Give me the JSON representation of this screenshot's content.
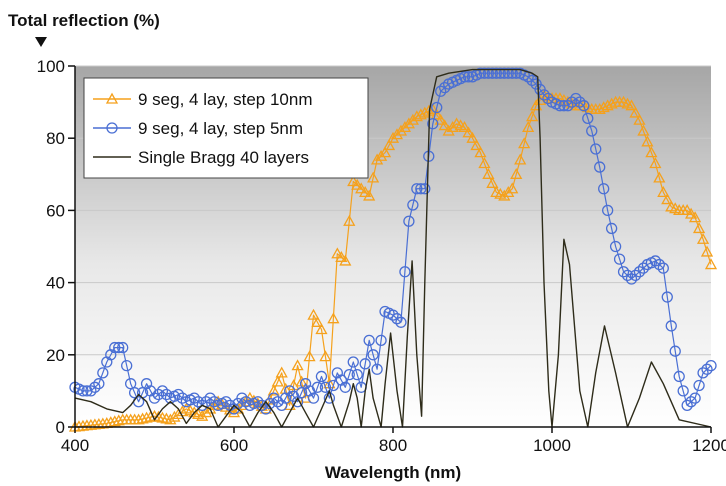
{
  "chart_data": {
    "type": "line",
    "title": "",
    "ylabel": "Total reflection (%)",
    "xlabel": "Wavelength (nm)",
    "xlim": [
      400,
      1200
    ],
    "ylim": [
      0,
      100
    ],
    "x_ticks": [
      400,
      600,
      800,
      1000,
      1200
    ],
    "y_ticks": [
      0,
      20,
      40,
      60,
      80,
      100
    ],
    "x_tick_labels": [
      "400",
      "600",
      "800",
      "1000",
      "1200"
    ],
    "y_tick_labels": [
      "0",
      "20",
      "40",
      "60",
      "80",
      "100"
    ],
    "legend_position": "top-left",
    "background": "vertical gradient, white at bottom to grey at top",
    "series": [
      {
        "name": "9 seg, 4 lay, step 10nm",
        "color": "#f5a11c",
        "marker": "triangle",
        "points": [
          [
            400,
            0
          ],
          [
            420,
            0.5
          ],
          [
            440,
            1
          ],
          [
            460,
            2
          ],
          [
            480,
            2
          ],
          [
            500,
            3
          ],
          [
            520,
            2
          ],
          [
            540,
            5
          ],
          [
            560,
            3
          ],
          [
            580,
            7
          ],
          [
            600,
            4
          ],
          [
            620,
            8
          ],
          [
            640,
            5
          ],
          [
            660,
            15
          ],
          [
            670,
            6
          ],
          [
            680,
            17
          ],
          [
            690,
            8
          ],
          [
            700,
            31
          ],
          [
            710,
            27
          ],
          [
            720,
            12
          ],
          [
            730,
            48
          ],
          [
            740,
            46
          ],
          [
            750,
            68
          ],
          [
            760,
            66
          ],
          [
            770,
            64
          ],
          [
            780,
            74
          ],
          [
            790,
            76
          ],
          [
            800,
            80
          ],
          [
            810,
            82
          ],
          [
            820,
            84
          ],
          [
            830,
            86
          ],
          [
            840,
            87
          ],
          [
            850,
            88
          ],
          [
            860,
            85
          ],
          [
            870,
            82
          ],
          [
            880,
            84
          ],
          [
            890,
            83
          ],
          [
            900,
            80
          ],
          [
            910,
            76
          ],
          [
            920,
            70
          ],
          [
            930,
            65
          ],
          [
            940,
            64
          ],
          [
            950,
            66
          ],
          [
            960,
            74
          ],
          [
            970,
            83
          ],
          [
            980,
            89
          ],
          [
            990,
            92
          ],
          [
            1000,
            91
          ],
          [
            1010,
            91
          ],
          [
            1020,
            90
          ],
          [
            1030,
            89
          ],
          [
            1040,
            89
          ],
          [
            1050,
            88
          ],
          [
            1060,
            88
          ],
          [
            1070,
            89
          ],
          [
            1080,
            90
          ],
          [
            1090,
            90
          ],
          [
            1100,
            89
          ],
          [
            1110,
            85
          ],
          [
            1120,
            79
          ],
          [
            1130,
            73
          ],
          [
            1140,
            65
          ],
          [
            1150,
            61
          ],
          [
            1160,
            60
          ],
          [
            1170,
            60
          ],
          [
            1180,
            58
          ],
          [
            1190,
            52
          ],
          [
            1200,
            45
          ]
        ]
      },
      {
        "name": "9 seg, 4 lay, step 5nm",
        "color": "#4a6fd4",
        "marker": "circle",
        "points": [
          [
            400,
            11
          ],
          [
            410,
            10
          ],
          [
            420,
            10
          ],
          [
            430,
            12
          ],
          [
            440,
            18
          ],
          [
            450,
            22
          ],
          [
            460,
            22
          ],
          [
            470,
            12
          ],
          [
            480,
            7
          ],
          [
            490,
            12
          ],
          [
            500,
            8
          ],
          [
            510,
            10
          ],
          [
            520,
            8
          ],
          [
            530,
            9
          ],
          [
            540,
            7
          ],
          [
            550,
            8
          ],
          [
            560,
            6
          ],
          [
            570,
            8
          ],
          [
            580,
            6
          ],
          [
            590,
            7
          ],
          [
            600,
            5
          ],
          [
            610,
            8
          ],
          [
            620,
            6
          ],
          [
            630,
            7
          ],
          [
            640,
            5
          ],
          [
            650,
            8
          ],
          [
            660,
            6
          ],
          [
            670,
            10
          ],
          [
            680,
            7
          ],
          [
            690,
            12
          ],
          [
            700,
            8
          ],
          [
            710,
            14
          ],
          [
            720,
            8
          ],
          [
            730,
            15
          ],
          [
            740,
            11
          ],
          [
            750,
            18
          ],
          [
            760,
            11
          ],
          [
            770,
            24
          ],
          [
            780,
            16
          ],
          [
            790,
            32
          ],
          [
            800,
            31
          ],
          [
            810,
            29
          ],
          [
            820,
            57
          ],
          [
            830,
            66
          ],
          [
            840,
            66
          ],
          [
            850,
            84
          ],
          [
            860,
            93
          ],
          [
            870,
            95
          ],
          [
            880,
            96
          ],
          [
            890,
            97
          ],
          [
            900,
            97
          ],
          [
            910,
            98
          ],
          [
            920,
            98
          ],
          [
            930,
            98
          ],
          [
            940,
            98
          ],
          [
            950,
            98
          ],
          [
            960,
            98
          ],
          [
            970,
            97
          ],
          [
            980,
            95
          ],
          [
            990,
            92
          ],
          [
            1000,
            90
          ],
          [
            1010,
            89
          ],
          [
            1020,
            89
          ],
          [
            1030,
            91
          ],
          [
            1040,
            89
          ],
          [
            1050,
            82
          ],
          [
            1060,
            72
          ],
          [
            1070,
            60
          ],
          [
            1080,
            50
          ],
          [
            1090,
            43
          ],
          [
            1100,
            41
          ],
          [
            1110,
            43
          ],
          [
            1120,
            45
          ],
          [
            1130,
            46
          ],
          [
            1140,
            44
          ],
          [
            1150,
            28
          ],
          [
            1160,
            14
          ],
          [
            1170,
            6
          ],
          [
            1180,
            8
          ],
          [
            1190,
            15
          ],
          [
            1200,
            17
          ]
        ]
      },
      {
        "name": "Single Bragg 40 layers",
        "color": "#2e2c1a",
        "marker": "none",
        "points": [
          [
            400,
            8
          ],
          [
            420,
            7
          ],
          [
            440,
            5
          ],
          [
            460,
            4
          ],
          [
            470,
            6
          ],
          [
            480,
            9
          ],
          [
            490,
            7
          ],
          [
            500,
            2
          ],
          [
            510,
            5
          ],
          [
            520,
            7
          ],
          [
            530,
            5
          ],
          [
            540,
            1
          ],
          [
            550,
            4
          ],
          [
            560,
            6
          ],
          [
            570,
            5
          ],
          [
            580,
            0
          ],
          [
            590,
            3
          ],
          [
            600,
            6
          ],
          [
            610,
            4
          ],
          [
            620,
            0
          ],
          [
            630,
            4
          ],
          [
            640,
            7
          ],
          [
            650,
            4
          ],
          [
            660,
            0
          ],
          [
            670,
            4
          ],
          [
            680,
            8
          ],
          [
            690,
            4
          ],
          [
            700,
            0
          ],
          [
            710,
            5
          ],
          [
            720,
            10
          ],
          [
            725,
            6
          ],
          [
            735,
            0
          ],
          [
            745,
            7
          ],
          [
            750,
            12
          ],
          [
            755,
            8
          ],
          [
            760,
            0
          ],
          [
            765,
            10
          ],
          [
            770,
            16
          ],
          [
            775,
            8
          ],
          [
            785,
            0
          ],
          [
            790,
            12
          ],
          [
            797,
            26
          ],
          [
            805,
            10
          ],
          [
            812,
            0
          ],
          [
            818,
            25
          ],
          [
            824,
            46
          ],
          [
            830,
            20
          ],
          [
            836,
            3
          ],
          [
            840,
            40
          ],
          [
            846,
            88
          ],
          [
            855,
            97
          ],
          [
            870,
            98
          ],
          [
            900,
            99
          ],
          [
            930,
            99
          ],
          [
            960,
            99
          ],
          [
            975,
            98
          ],
          [
            982,
            97
          ],
          [
            985,
            80
          ],
          [
            990,
            40
          ],
          [
            996,
            10
          ],
          [
            1000,
            0
          ],
          [
            1008,
            20
          ],
          [
            1015,
            52
          ],
          [
            1022,
            45
          ],
          [
            1035,
            10
          ],
          [
            1045,
            0
          ],
          [
            1055,
            15
          ],
          [
            1066,
            28
          ],
          [
            1080,
            15
          ],
          [
            1095,
            0
          ],
          [
            1110,
            8
          ],
          [
            1125,
            18
          ],
          [
            1140,
            12
          ],
          [
            1160,
            2
          ],
          [
            1200,
            0
          ]
        ]
      }
    ]
  }
}
